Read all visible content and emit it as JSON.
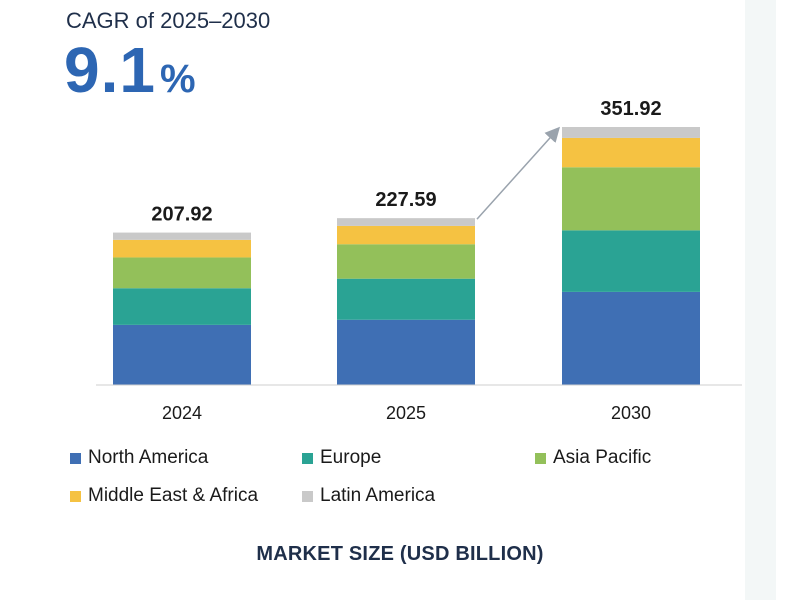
{
  "header": {
    "cagr_label": "CAGR of 2025–2030",
    "cagr_number": "9.1",
    "cagr_unit": "%"
  },
  "chart_data": {
    "type": "bar",
    "stacked": true,
    "categories": [
      "2024",
      "2025",
      "2030"
    ],
    "totals_labels": [
      "207.92",
      "227.59",
      "351.92"
    ],
    "totals": [
      207.92,
      227.59,
      351.92
    ],
    "series": [
      {
        "name": "North America",
        "color": "#3f6fb4",
        "values": [
          82,
          89,
          127
        ]
      },
      {
        "name": "Europe",
        "color": "#2aa394",
        "values": [
          50,
          56,
          84
        ]
      },
      {
        "name": "Asia Pacific",
        "color": "#93c05a",
        "values": [
          42,
          47,
          86
        ]
      },
      {
        "name": "Middle East & Africa",
        "color": "#f5c242",
        "values": [
          24,
          25,
          40
        ]
      },
      {
        "name": "Latin America",
        "color": "#c9c9c9",
        "values": [
          9.92,
          10.59,
          14.92
        ]
      }
    ],
    "growth_arrow": {
      "from": "2025",
      "to": "2030"
    },
    "legend_position": "bottom",
    "xlabel": "MARKET SIZE (USD BILLION)",
    "ylabel": "",
    "grid": false
  }
}
